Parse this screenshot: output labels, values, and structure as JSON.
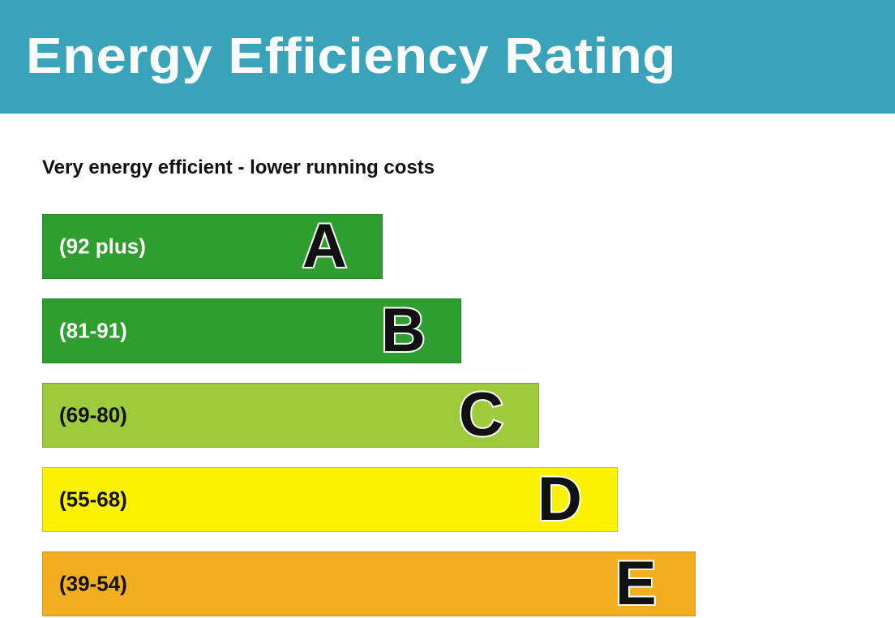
{
  "header": {
    "title": "Energy Efficiency Rating"
  },
  "subtitle": "Very energy efficient - lower running costs",
  "chart_data": {
    "type": "bar",
    "title": "Energy Efficiency Rating",
    "categories": [
      "A",
      "B",
      "C",
      "D",
      "E"
    ],
    "bands": [
      {
        "letter": "A",
        "range": "(92 plus)",
        "color": "#2e9e2e",
        "text_color": "#ffffff"
      },
      {
        "letter": "B",
        "range": "(81-91)",
        "color": "#2e9e2e",
        "text_color": "#ffffff"
      },
      {
        "letter": "C",
        "range": "(69-80)",
        "color": "#9dcb3b",
        "text_color": "#111111"
      },
      {
        "letter": "D",
        "range": "(55-68)",
        "color": "#fcf200",
        "text_color": "#111111"
      },
      {
        "letter": "E",
        "range": "(39-54)",
        "color": "#f3ae1f",
        "text_color": "#111111"
      }
    ]
  }
}
